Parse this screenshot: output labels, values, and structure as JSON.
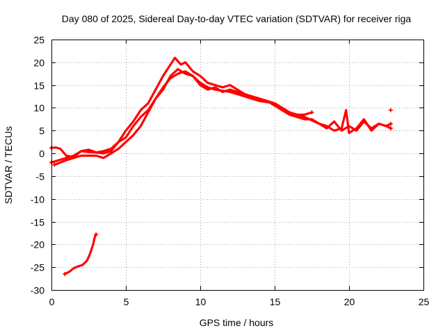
{
  "chart_data": {
    "type": "scatter",
    "title": "Day 080 of 2025, Sidereal Day-to-day VTEC variation (SDTVAR) for receiver riga",
    "xlabel": "GPS time / hours",
    "ylabel": "SDTVAR / TECUs",
    "xlim": [
      0,
      25
    ],
    "ylim": [
      -30,
      25
    ],
    "xticks": [
      0,
      5,
      10,
      15,
      20,
      25
    ],
    "yticks": [
      25,
      20,
      15,
      10,
      5,
      0,
      -5,
      -10,
      -15,
      -20,
      -25,
      -30
    ],
    "grid": true,
    "marker": "+",
    "color": "#ff0000",
    "series": [
      {
        "name": "trace-a",
        "x": [
          0.0,
          0.3,
          0.6,
          1.0,
          1.5,
          2.0,
          2.5,
          3.0,
          3.5,
          4.0,
          4.5,
          5.0,
          5.5,
          6.0,
          6.5,
          7.0,
          7.5,
          8.0,
          8.3,
          8.7,
          9.0,
          9.5,
          10.0,
          10.5,
          11.0,
          11.5,
          12.0,
          12.5,
          13.0,
          13.5,
          14.0,
          14.5,
          15.0,
          15.5,
          16.0,
          16.5,
          17.0,
          17.5
        ],
        "y": [
          1.2,
          1.3,
          1.0,
          -0.5,
          -0.8,
          0.5,
          0.3,
          0.2,
          0.0,
          0.5,
          2.5,
          5.0,
          7.0,
          9.5,
          11.0,
          14.0,
          17.0,
          19.5,
          21.0,
          19.5,
          20.0,
          18.0,
          17.0,
          15.5,
          15.0,
          14.5,
          15.0,
          14.0,
          13.0,
          12.5,
          12.0,
          11.5,
          11.0,
          10.0,
          9.0,
          8.5,
          8.5,
          9.0
        ]
      },
      {
        "name": "trace-b",
        "x": [
          0.0,
          0.5,
          1.0,
          1.5,
          2.0,
          2.5,
          3.0,
          3.5,
          4.0,
          4.5,
          5.0,
          5.5,
          6.0,
          6.5,
          7.0,
          7.5,
          8.0,
          8.5,
          9.0,
          9.5,
          10.0,
          10.5,
          11.0,
          11.5,
          12.0,
          12.5,
          13.0,
          13.5,
          14.0,
          14.5,
          15.0,
          15.5,
          16.0,
          16.5,
          17.0,
          17.5,
          18.0,
          18.5,
          19.0,
          19.5,
          19.8,
          20.0,
          20.5,
          21.0,
          21.5,
          22.0,
          22.5,
          22.8
        ],
        "y": [
          -2.0,
          -1.5,
          -1.0,
          -0.5,
          0.5,
          0.8,
          0.2,
          0.5,
          1.0,
          2.5,
          3.5,
          6.0,
          8.0,
          9.5,
          12.0,
          14.5,
          16.5,
          17.5,
          18.0,
          17.0,
          15.0,
          14.0,
          14.5,
          13.5,
          14.0,
          13.5,
          12.5,
          12.0,
          11.5,
          11.5,
          10.5,
          9.5,
          8.5,
          8.0,
          7.5,
          7.5,
          6.5,
          6.0,
          5.0,
          5.5,
          9.5,
          4.5,
          5.5,
          7.5,
          5.0,
          6.5,
          6.0,
          5.5
        ]
      },
      {
        "name": "trace-c",
        "x": [
          0.2,
          1.0,
          2.0,
          3.0,
          3.5,
          4.0,
          4.5,
          5.0,
          5.5,
          6.0,
          6.5,
          7.0,
          7.5,
          8.0,
          8.5,
          9.0,
          9.5,
          10.0,
          10.5,
          11.0,
          12.0,
          13.0,
          14.0,
          15.0,
          16.0,
          17.0,
          18.0,
          18.5,
          19.0,
          19.5,
          20.0,
          20.5,
          21.0,
          21.5,
          22.0,
          22.5,
          22.8
        ],
        "y": [
          -2.5,
          -1.5,
          -0.5,
          -0.5,
          -1.0,
          0.0,
          1.0,
          2.5,
          4.0,
          6.0,
          9.0,
          12.0,
          14.0,
          17.0,
          18.5,
          17.5,
          17.0,
          15.5,
          14.5,
          14.0,
          13.5,
          12.5,
          11.5,
          11.0,
          9.0,
          8.0,
          6.5,
          5.5,
          7.0,
          5.0,
          6.0,
          5.0,
          7.0,
          5.5,
          6.5,
          6.0,
          6.5
        ]
      },
      {
        "name": "trace-early",
        "x": [
          0.9,
          1.2,
          1.5,
          1.8,
          2.1,
          2.4,
          2.6,
          2.8,
          2.9,
          3.0
        ],
        "y": [
          -26.5,
          -26.0,
          -25.2,
          -24.8,
          -24.5,
          -23.5,
          -22.0,
          -20.0,
          -18.5,
          -17.8
        ]
      }
    ],
    "isolated_points": [
      {
        "x": 22.8,
        "y": 9.5
      }
    ]
  }
}
